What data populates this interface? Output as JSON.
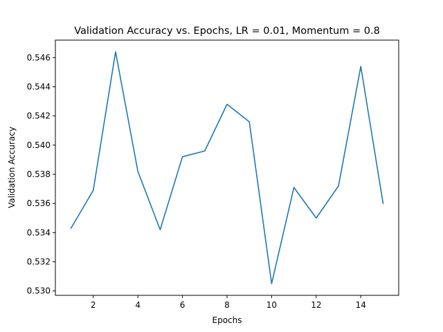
{
  "chart_data": {
    "type": "line",
    "title": "Validation Accuracy vs. Epochs, LR = 0.01, Momentum = 0.8",
    "xlabel": "Epochs",
    "ylabel": "Validation Accuracy",
    "xlim": [
      0.3,
      15.7
    ],
    "ylim": [
      0.5297,
      0.5472
    ],
    "xticks": [
      2,
      4,
      6,
      8,
      10,
      12,
      14
    ],
    "yticks": [
      0.53,
      0.532,
      0.534,
      0.536,
      0.538,
      0.54,
      0.542,
      0.544,
      0.546
    ],
    "x_tick_labels": [
      "2",
      "4",
      "6",
      "8",
      "10",
      "12",
      "14"
    ],
    "y_tick_labels": [
      "0.530",
      "0.532",
      "0.534",
      "0.536",
      "0.538",
      "0.540",
      "0.542",
      "0.544",
      "0.546"
    ],
    "grid": false,
    "legend": "none",
    "series": [
      {
        "color": "#1f77b4",
        "x": [
          1,
          2,
          3,
          4,
          5,
          6,
          7,
          8,
          9,
          10,
          11,
          12,
          13,
          14,
          15
        ],
        "values": [
          0.5343,
          0.5369,
          0.5464,
          0.5382,
          0.5342,
          0.5392,
          0.5396,
          0.5428,
          0.5416,
          0.5305,
          0.5371,
          0.535,
          0.5372,
          0.5454,
          0.536
        ]
      }
    ]
  }
}
